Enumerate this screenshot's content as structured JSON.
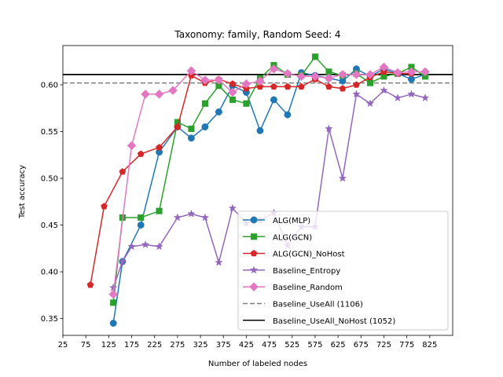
{
  "chart_data": {
    "type": "line",
    "title": "Taxonomy: family, Random Seed: 4",
    "xlabel": "Number of labeled nodes",
    "ylabel": "Test accuracy",
    "xlim": [
      25,
      875
    ],
    "ylim": [
      0.332,
      0.642
    ],
    "xticks": [
      25,
      75,
      125,
      175,
      225,
      275,
      325,
      375,
      425,
      475,
      525,
      575,
      625,
      675,
      725,
      775,
      825
    ],
    "yticks": [
      0.35,
      0.4,
      0.45,
      0.5,
      0.55,
      0.6
    ],
    "ytick_labels": [
      "0.35",
      "0.40",
      "0.45",
      "0.50",
      "0.55",
      "0.60"
    ],
    "grid": false,
    "legend_position": "lower-right",
    "series": [
      {
        "name": "ALG(MLP)",
        "color": "#1f77b4",
        "marker": "circle",
        "x": [
          135,
          155,
          195,
          235,
          275,
          305,
          335,
          365,
          395,
          425,
          455,
          485,
          515,
          545,
          575,
          605,
          635,
          665,
          695,
          725,
          755,
          785,
          815
        ],
        "y": [
          0.345,
          0.411,
          0.45,
          0.528,
          0.555,
          0.543,
          0.555,
          0.571,
          0.599,
          0.592,
          0.551,
          0.584,
          0.568,
          0.613,
          0.61,
          0.607,
          0.604,
          0.617,
          0.609,
          0.617,
          0.612,
          0.606,
          0.611
        ]
      },
      {
        "name": "ALG(GCN)",
        "color": "#2ca02c",
        "marker": "square",
        "x": [
          135,
          155,
          195,
          235,
          275,
          305,
          335,
          365,
          395,
          425,
          455,
          485,
          515,
          545,
          575,
          605,
          635,
          665,
          695,
          725,
          755,
          785,
          815
        ],
        "y": [
          0.367,
          0.458,
          0.458,
          0.465,
          0.56,
          0.553,
          0.58,
          0.599,
          0.584,
          0.58,
          0.607,
          0.621,
          0.611,
          0.61,
          0.63,
          0.614,
          0.61,
          0.612,
          0.602,
          0.609,
          0.612,
          0.619,
          0.609
        ]
      },
      {
        "name": "ALG(GCN)_NoHost",
        "color": "#d62728",
        "marker": "pentagon",
        "x": [
          85,
          115,
          155,
          195,
          235,
          275,
          305,
          335,
          365,
          395,
          425,
          455,
          485,
          515,
          545,
          575,
          605,
          635,
          665,
          695,
          725,
          755,
          785
        ],
        "y": [
          0.386,
          0.47,
          0.507,
          0.526,
          0.533,
          0.555,
          0.61,
          0.602,
          0.606,
          0.601,
          0.596,
          0.598,
          0.598,
          0.598,
          0.598,
          0.606,
          0.598,
          0.596,
          0.6,
          0.608,
          0.614,
          0.612,
          0.612
        ]
      },
      {
        "name": "Baseline_Entropy",
        "color": "#9467bd",
        "marker": "star",
        "x": [
          135,
          155,
          175,
          205,
          235,
          275,
          305,
          335,
          365,
          395,
          425,
          455,
          485,
          515,
          545,
          575,
          605,
          635,
          665,
          695,
          725,
          755,
          785,
          815
        ],
        "y": [
          0.383,
          0.411,
          0.427,
          0.429,
          0.427,
          0.458,
          0.462,
          0.458,
          0.41,
          0.468,
          0.452,
          0.455,
          0.463,
          0.428,
          0.448,
          0.448,
          0.553,
          0.5,
          0.59,
          0.58,
          0.594,
          0.586,
          0.59,
          0.586
        ]
      },
      {
        "name": "Baseline_Random",
        "color": "#e377c2",
        "marker": "diamond",
        "x": [
          135,
          175,
          205,
          235,
          265,
          305,
          335,
          365,
          395,
          425,
          455,
          485,
          515,
          545,
          575,
          605,
          635,
          665,
          695,
          725,
          755,
          785,
          815
        ],
        "y": [
          0.376,
          0.535,
          0.59,
          0.59,
          0.594,
          0.615,
          0.605,
          0.605,
          0.592,
          0.601,
          0.604,
          0.617,
          0.612,
          0.609,
          0.609,
          0.607,
          0.611,
          0.611,
          0.611,
          0.619,
          0.613,
          0.614,
          0.614
        ]
      }
    ],
    "reference_lines": [
      {
        "name": "Baseline_UseAll (1106)",
        "y": 0.602,
        "color": "#7f7f7f",
        "style": "dashed"
      },
      {
        "name": "Baseline_UseAll_NoHost (1052)",
        "y": 0.611,
        "color": "#000000",
        "style": "solid"
      }
    ]
  }
}
